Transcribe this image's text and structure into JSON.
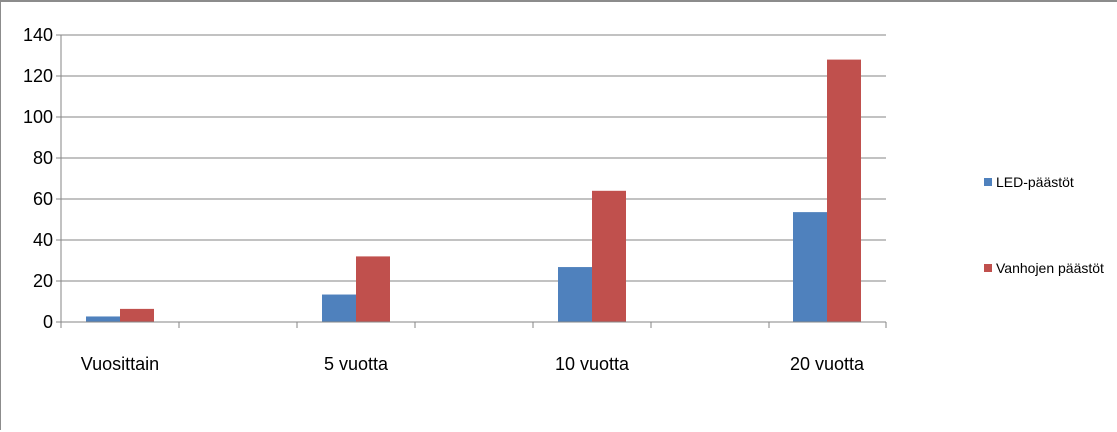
{
  "chart_data": {
    "type": "bar",
    "categories": [
      "Vuosittain",
      "5 vuotta",
      "10 vuotta",
      "20 vuotta"
    ],
    "series": [
      {
        "name": "LED-päästöt",
        "values": [
          2.7,
          13.4,
          26.8,
          53.6
        ],
        "color": "#4f81bd"
      },
      {
        "name": "Vanhojen päästöt",
        "values": [
          6.4,
          32,
          64,
          128
        ],
        "color": "#c0504d"
      }
    ],
    "title": "",
    "xlabel": "",
    "ylabel": "",
    "ylim": [
      0,
      140
    ],
    "yticks": [
      0,
      20,
      40,
      60,
      80,
      100,
      120,
      140
    ],
    "ytick_labels": [
      "0",
      "20",
      "40",
      "60",
      "80",
      "100",
      "120",
      "140"
    ],
    "grid": true,
    "legend_position": "right",
    "gridline_color": "#868686"
  }
}
